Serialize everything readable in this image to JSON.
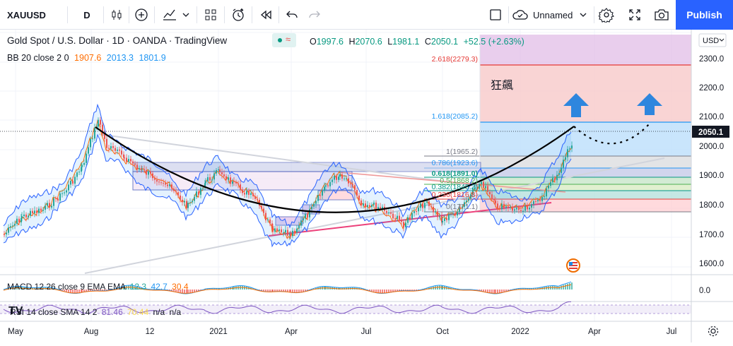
{
  "toolbar": {
    "symbol": "XAUUSD",
    "interval": "D",
    "layout_name": "Unnamed",
    "publish_label": "Publish",
    "icons": [
      "candles-icon",
      "plus-circle-icon",
      "indicators-icon",
      "templates-icon",
      "alert-icon",
      "replay-icon",
      "undo-icon",
      "redo-icon",
      "fullscreen-square-icon",
      "cloud-icon",
      "gear-icon",
      "expand-icon",
      "camera-icon"
    ]
  },
  "legend": {
    "title": "Gold Spot / U.S. Dollar · 1D · OANDA · TradingView",
    "o_label": "O",
    "o": "1997.6",
    "h_label": "H",
    "h": "2070.6",
    "l_label": "L",
    "l": "1981.1",
    "c_label": "C",
    "c": "2050.1",
    "change": "+52.5 (+2.63%)",
    "bb_label": "BB 20 close 2 0",
    "bb_basis": "1907.6",
    "bb_upper": "2013.3",
    "bb_lower": "1801.9",
    "macd_label": "MACD 12 26 close 9 EMA EMA",
    "macd_v1": "12.3",
    "macd_v2": "42.7",
    "macd_v3": "30.4",
    "rsi_label": "RSI 14 close SMA 14 2",
    "rsi_v1": "81.46",
    "rsi_v2": "70.44",
    "rsi_v3": "n/a",
    "rsi_v4": "n/a"
  },
  "price_axis": {
    "currency": "USD",
    "ticks": [
      "2300.0",
      "2200.0",
      "2100.0",
      "2000.0",
      "1900.0",
      "1800.0",
      "1700.0",
      "1600.0"
    ],
    "last_price": "2050.1",
    "macd_tick": "0.0"
  },
  "time_axis": [
    "May",
    "Aug",
    "12",
    "2021",
    "Apr",
    "Jul",
    "Oct",
    "2022",
    "Apr",
    "Jul"
  ],
  "fib_levels": [
    {
      "label": "2.618(2279.3)",
      "color": "#e53935"
    },
    {
      "label": "1.618(2085.2)",
      "color": "#2196f3"
    },
    {
      "label": "1(1965.2)",
      "color": "#787b86"
    },
    {
      "label": "0.786(1923.6)",
      "color": "#2196f3"
    },
    {
      "label": "0.618(1891.0)",
      "color": "#089981"
    },
    {
      "label": "0.5(1868.2)",
      "color": "#4caf50"
    },
    {
      "label": "0.382(1845.2)",
      "color": "#009688"
    },
    {
      "label": "0.236(1816.8)",
      "color": "#e53935"
    },
    {
      "label": "0(1771.1)",
      "color": "#787b86"
    }
  ],
  "annotation_text": "狂飆",
  "watermark": "TV",
  "colors": {
    "accent": "#2962ff",
    "up": "#26a69a",
    "down": "#ef5350",
    "bb_fill": "#2196f3"
  }
}
